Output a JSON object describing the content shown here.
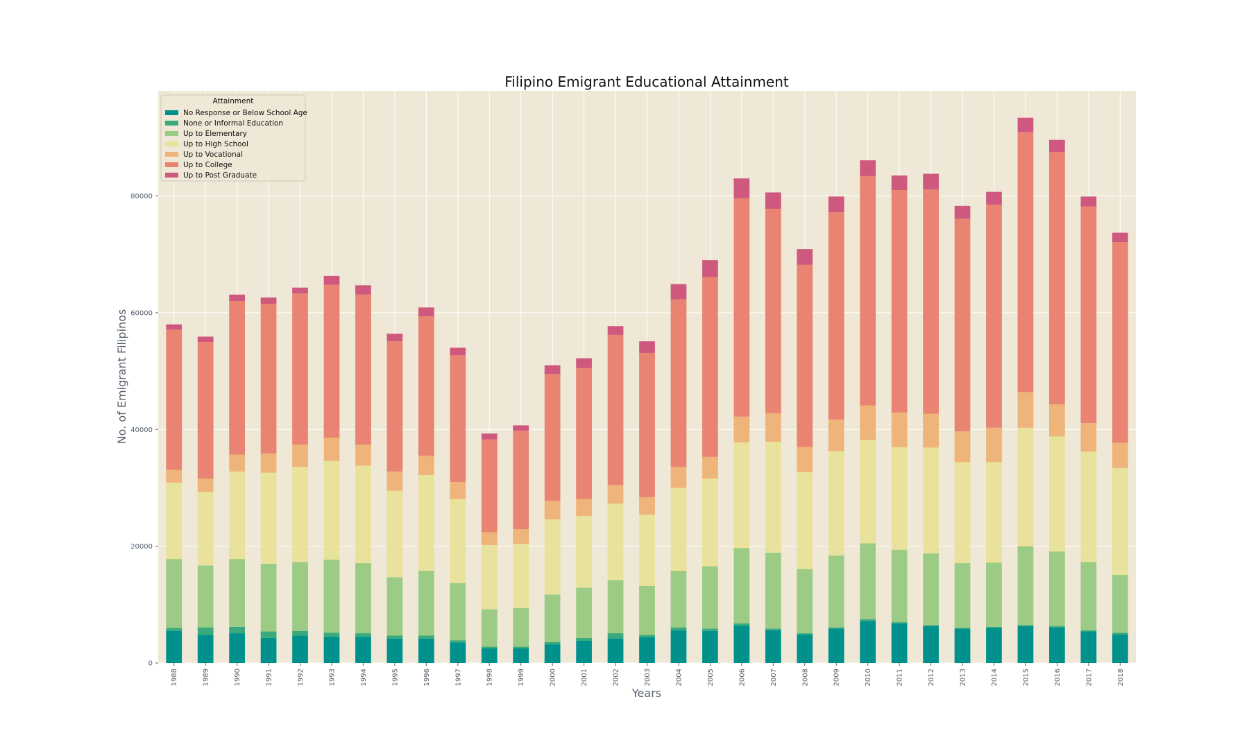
{
  "chart_data": {
    "type": "bar",
    "stacked": true,
    "title": "Filipino Emigrant Educational Attainment",
    "xlabel": "Years",
    "ylabel": "No. of Emigrant Filipinos",
    "ylim": [
      0,
      98000
    ],
    "yticks": [
      0,
      20000,
      40000,
      60000,
      80000
    ],
    "grid": true,
    "background_color": "#efe8d6",
    "legend": {
      "title": "Attainment",
      "placement": "top-left"
    },
    "categories": [
      "1988",
      "1989",
      "1990",
      "1991",
      "1992",
      "1993",
      "1994",
      "1995",
      "1996",
      "1997",
      "1998",
      "1999",
      "2000",
      "2001",
      "2002",
      "2003",
      "2004",
      "2005",
      "2006",
      "2007",
      "2008",
      "2009",
      "2010",
      "2011",
      "2012",
      "2013",
      "2014",
      "2015",
      "2016",
      "2017",
      "2018"
    ],
    "series": [
      {
        "name": "No Response or Below School Age",
        "color": "#00918c",
        "values": [
          5500,
          4800,
          5100,
          4300,
          4700,
          4500,
          4500,
          4200,
          4200,
          3500,
          2500,
          2500,
          3200,
          3800,
          4200,
          4400,
          5600,
          5500,
          6400,
          5600,
          4900,
          5900,
          7200,
          6800,
          6300,
          5900,
          6000,
          6300,
          6100,
          5400,
          4900
        ]
      },
      {
        "name": "None or Informal Education",
        "color": "#3aaa7c",
        "values": [
          500,
          1300,
          1100,
          1100,
          800,
          700,
          600,
          500,
          500,
          400,
          300,
          300,
          400,
          500,
          900,
          400,
          500,
          400,
          400,
          300,
          200,
          200,
          300,
          200,
          200,
          100,
          200,
          200,
          200,
          200,
          300
        ]
      },
      {
        "name": "Up to Elementary",
        "color": "#9ccb86",
        "values": [
          11800,
          10600,
          11600,
          11600,
          11800,
          12500,
          12000,
          10000,
          11100,
          9800,
          6400,
          6600,
          8100,
          8600,
          9100,
          8400,
          9700,
          10700,
          12900,
          13000,
          11000,
          12300,
          13000,
          12400,
          12300,
          11100,
          11000,
          13500,
          12800,
          11700,
          9900
        ]
      },
      {
        "name": "Up to High School",
        "color": "#e9e29c",
        "values": [
          13100,
          12600,
          15000,
          15600,
          16300,
          16900,
          16700,
          14800,
          16400,
          14400,
          11000,
          11000,
          12900,
          12300,
          13100,
          12200,
          14200,
          15000,
          18100,
          19000,
          16600,
          17900,
          17700,
          17600,
          18100,
          17300,
          17200,
          20300,
          19700,
          18900,
          18300
        ]
      },
      {
        "name": "Up to Vocational",
        "color": "#eeb479",
        "values": [
          2200,
          2300,
          2900,
          3300,
          3800,
          4000,
          3600,
          3300,
          3300,
          2900,
          2200,
          2500,
          3200,
          2900,
          3200,
          3000,
          3600,
          3700,
          4400,
          4900,
          4300,
          5400,
          5900,
          5900,
          5800,
          5300,
          5900,
          6100,
          5500,
          4900,
          4300
        ]
      },
      {
        "name": "Up to College",
        "color": "#e88471",
        "values": [
          24000,
          23400,
          26300,
          25600,
          25900,
          26200,
          25700,
          22300,
          23900,
          21700,
          15900,
          16900,
          21700,
          22400,
          25700,
          24700,
          28700,
          30800,
          37400,
          35000,
          31200,
          35500,
          39300,
          38100,
          38400,
          36400,
          38200,
          44500,
          43200,
          37100,
          34400
        ]
      },
      {
        "name": "Up to Post Graduate",
        "color": "#cf597e",
        "values": [
          900,
          900,
          1100,
          1100,
          1000,
          1500,
          1600,
          1300,
          1500,
          1300,
          1000,
          900,
          1500,
          1700,
          1500,
          2000,
          2600,
          2900,
          3400,
          2800,
          2700,
          2700,
          2700,
          2500,
          2700,
          2200,
          2200,
          2500,
          2100,
          1700,
          1600
        ]
      }
    ]
  }
}
